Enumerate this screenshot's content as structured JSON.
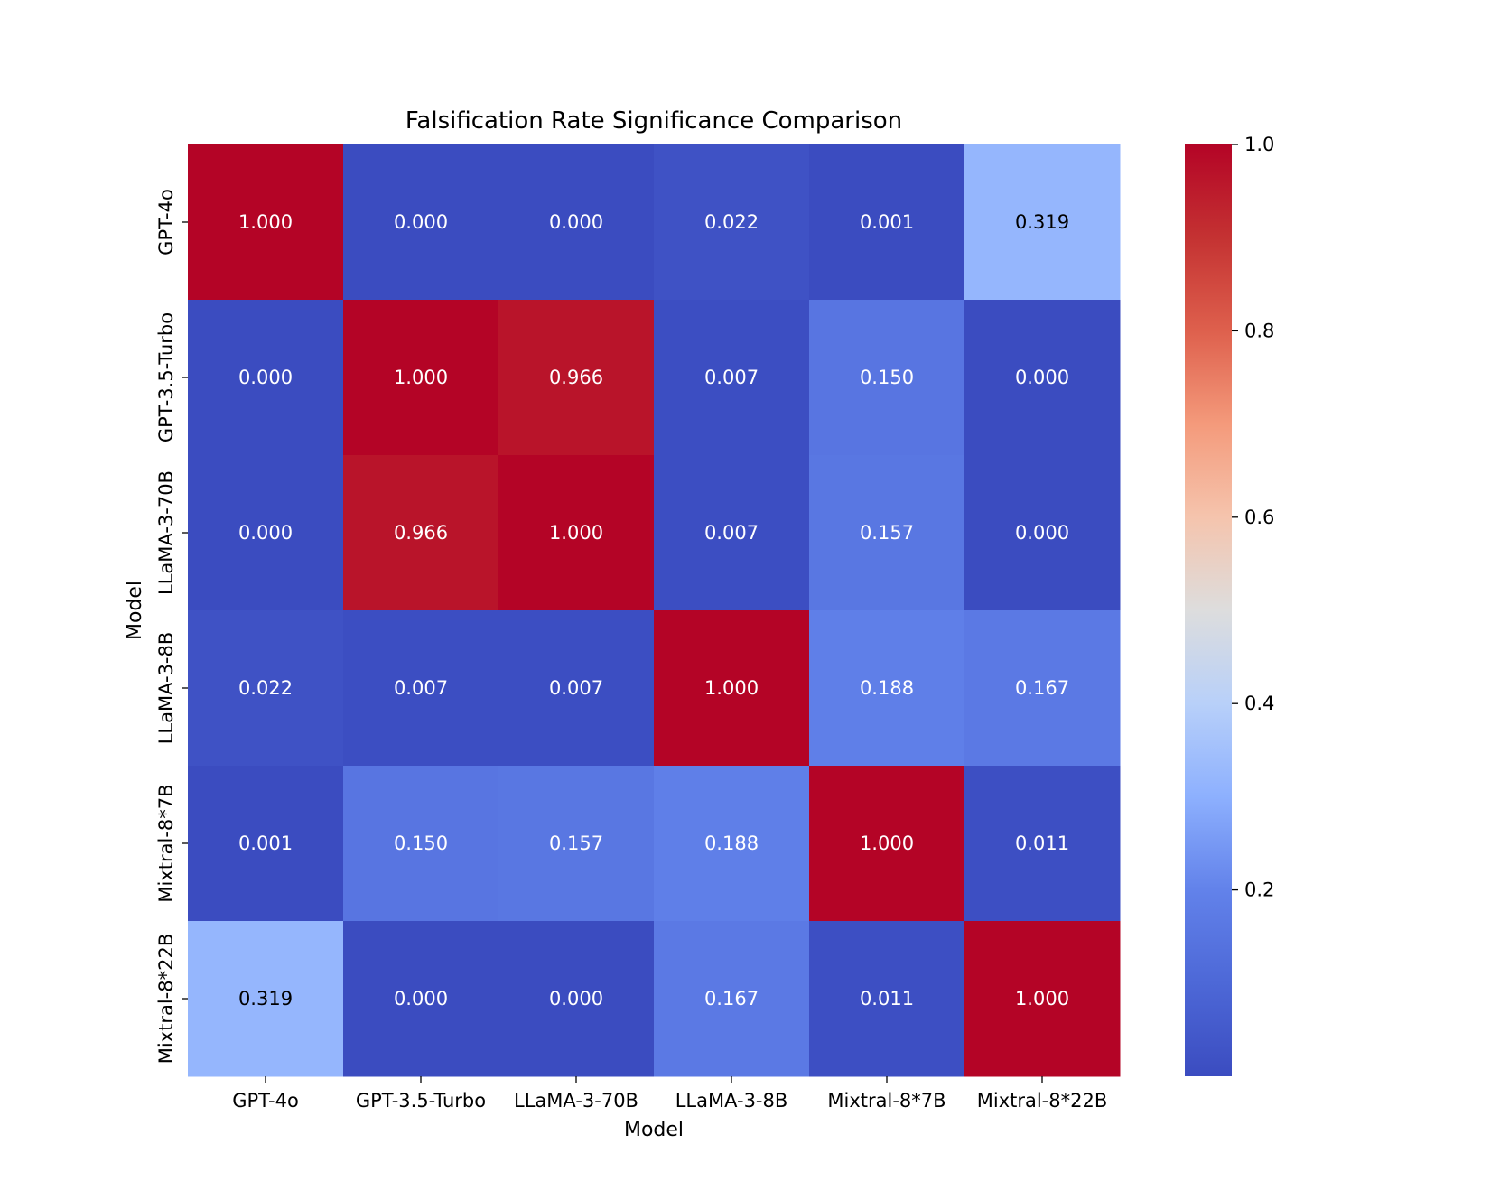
{
  "chart_data": {
    "type": "heatmap",
    "title": "Falsification Rate Significance Comparison",
    "xlabel": "Model",
    "ylabel": "Model",
    "x_categories": [
      "GPT-4o",
      "GPT-3.5-Turbo",
      "LLaMA-3-70B",
      "LLaMA-3-8B",
      "Mixtral-8*7B",
      "Mixtral-8*22B"
    ],
    "y_categories": [
      "GPT-4o",
      "GPT-3.5-Turbo",
      "LLaMA-3-70B",
      "LLaMA-3-8B",
      "Mixtral-8*7B",
      "Mixtral-8*22B"
    ],
    "values": [
      [
        1.0,
        0.0,
        0.0,
        0.022,
        0.001,
        0.319
      ],
      [
        0.0,
        1.0,
        0.966,
        0.007,
        0.15,
        0.0
      ],
      [
        0.0,
        0.966,
        1.0,
        0.007,
        0.157,
        0.0
      ],
      [
        0.022,
        0.007,
        0.007,
        1.0,
        0.188,
        0.167
      ],
      [
        0.001,
        0.15,
        0.157,
        0.188,
        1.0,
        0.011
      ],
      [
        0.319,
        0.0,
        0.0,
        0.167,
        0.011,
        1.0
      ]
    ],
    "cell_labels": [
      [
        "1.000",
        "0.000",
        "0.000",
        "0.022",
        "0.001",
        "0.319"
      ],
      [
        "0.000",
        "1.000",
        "0.966",
        "0.007",
        "0.150",
        "0.000"
      ],
      [
        "0.000",
        "0.966",
        "1.000",
        "0.007",
        "0.157",
        "0.000"
      ],
      [
        "0.022",
        "0.007",
        "0.007",
        "1.000",
        "0.188",
        "0.167"
      ],
      [
        "0.001",
        "0.150",
        "0.157",
        "0.188",
        "1.000",
        "0.011"
      ],
      [
        "0.319",
        "0.000",
        "0.000",
        "0.167",
        "0.011",
        "1.000"
      ]
    ],
    "colormap": "coolwarm",
    "colorbar": {
      "range": [
        0.0,
        1.0
      ],
      "ticks": [
        0.2,
        0.4,
        0.6,
        0.8,
        1.0
      ],
      "tick_labels": [
        "0.2",
        "0.4",
        "0.6",
        "0.8",
        "1.0"
      ]
    },
    "colors": {
      "low": "#3b4cc0",
      "mid": "#dddddd",
      "high": "#b40426",
      "text_light": "#ffffff",
      "text_dark": "#000000"
    }
  }
}
